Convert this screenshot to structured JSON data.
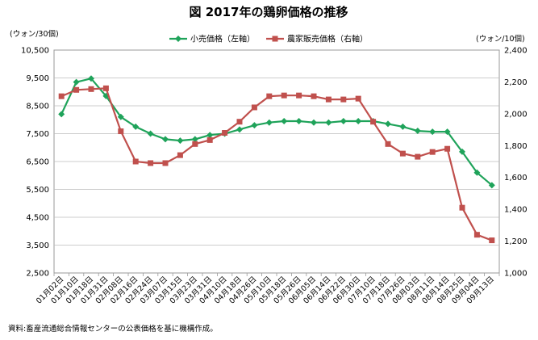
{
  "chart_data": {
    "type": "line",
    "title": "図  2017年の鶏卵価格の推移",
    "ylabel_left": "(ウォン/30個)",
    "ylabel_right": "(ウォン/10個)",
    "categories": [
      "01月02日",
      "01月10日",
      "01月18日",
      "01月31日",
      "02月08日",
      "02月16日",
      "02月24日",
      "03月07日",
      "03月15日",
      "03月23日",
      "03月31日",
      "04月10日",
      "04月18日",
      "04月26日",
      "05月10日",
      "05月18日",
      "05月26日",
      "06月05日",
      "06月14日",
      "06月22日",
      "06月30日",
      "07月10日",
      "07月18日",
      "07月26日",
      "08月03日",
      "08月11日",
      "08月14日",
      "08月25日",
      "09月04日",
      "09月13日"
    ],
    "series": [
      {
        "name": "小売価格（左軸）",
        "axis": "left",
        "color": "#1fa35a",
        "marker": "diamond",
        "values": [
          8200,
          9350,
          9480,
          8850,
          8100,
          7750,
          7500,
          7300,
          7250,
          7300,
          7450,
          7500,
          7650,
          7800,
          7900,
          7950,
          7950,
          7900,
          7900,
          7950,
          7950,
          7950,
          7850,
          7750,
          7600,
          7570,
          7570,
          6850,
          6100,
          5650
        ]
      },
      {
        "name": "農家販売価格（右軸）",
        "axis": "right",
        "color": "#c0504d",
        "marker": "square",
        "values": [
          2110,
          2150,
          2155,
          2160,
          1890,
          1700,
          1690,
          1690,
          1740,
          1810,
          1835,
          1880,
          1950,
          2040,
          2110,
          2115,
          2115,
          2110,
          2090,
          2090,
          2095,
          1950,
          1810,
          1750,
          1730,
          1760,
          1780,
          1410,
          1240,
          1205
        ]
      }
    ],
    "left_axis": {
      "ylim": [
        2500,
        10500
      ],
      "ticks": [
        "2,500",
        "3,500",
        "4,500",
        "5,500",
        "6,500",
        "7,500",
        "8,500",
        "9,500",
        "10,500"
      ]
    },
    "right_axis": {
      "ylim": [
        1000,
        2400
      ],
      "ticks": [
        "1,000",
        "1,200",
        "1,400",
        "1,600",
        "1,800",
        "2,000",
        "2,200",
        "2,400"
      ]
    },
    "grid": true,
    "legend_position": "top-center",
    "source_note": "資料:畜産流通総合情報センターの公表価格を基に機構作成。"
  }
}
